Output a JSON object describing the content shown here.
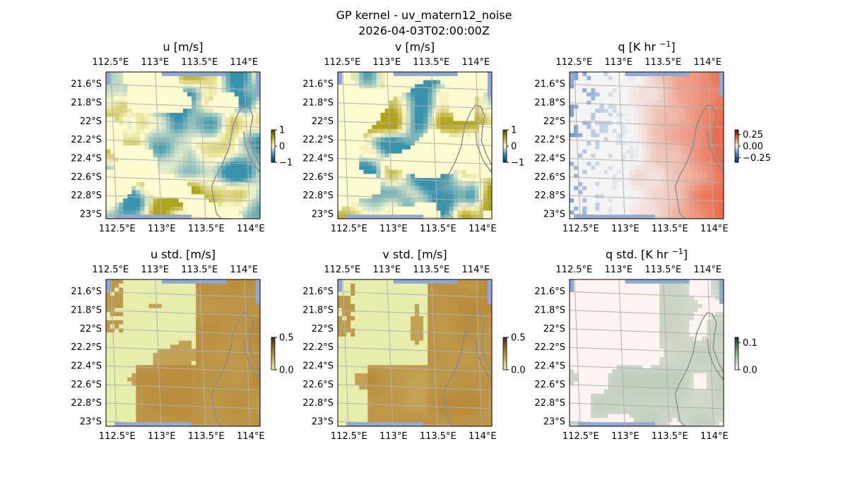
{
  "figure": {
    "title": "GP kernel - uv_matern12_noise",
    "subtitle": "2026-04-03T02:00:00Z"
  },
  "colors": {
    "ocean": "#8fa8d6",
    "grid": "#b0b0b0",
    "coast": "#8a8a8a",
    "u_low": "#fffbd0",
    "u_pos": "#b0a41e",
    "u_neg": "#3a93ad",
    "q_low": "#f4f4f4",
    "q_pos": "#ea6d4d",
    "std_low": "#e8f2b3",
    "std_high": "#b88a3a",
    "qstd_low": "#fff4f2",
    "qstd_high": "#8fb293"
  },
  "chart_data": [
    {
      "type": "heatmap",
      "title": "u [m/s]",
      "x_ticks": [
        "112.5°E",
        "113°E",
        "113.5°E",
        "114°E"
      ],
      "y_ticks": [
        "21.6°S",
        "21.8°S",
        "22°S",
        "22.2°S",
        "22.4°S",
        "22.6°S",
        "22.8°S",
        "23°S"
      ],
      "colorbar": {
        "ticks": [
          "1",
          "0",
          "−1"
        ],
        "range": [
          -1,
          1
        ]
      },
      "colormap": "diverging-teal-olive",
      "mask": "land-only (ocean shown blue)"
    },
    {
      "type": "heatmap",
      "title": "v [m/s]",
      "x_ticks": [
        "112.5°E",
        "113°E",
        "113.5°E",
        "114°E"
      ],
      "y_ticks": [
        "21.6°S",
        "21.8°S",
        "22°S",
        "22.2°S",
        "22.4°S",
        "22.6°S",
        "22.8°S",
        "23°S"
      ],
      "colorbar": {
        "ticks": [
          "1",
          "0",
          "−1"
        ],
        "range": [
          -1,
          1
        ]
      },
      "colormap": "diverging-teal-olive",
      "mask": "land-only (ocean shown blue)"
    },
    {
      "type": "heatmap",
      "title": "q [K hr ",
      "title_sup": "−1",
      "title_end": "]",
      "x_ticks": [
        "112.5°E",
        "113°E",
        "113.5°E",
        "114°E"
      ],
      "y_ticks": [
        "21.6°S",
        "21.8°S",
        "22°S",
        "22.2°S",
        "22.4°S",
        "22.6°S",
        "22.8°S",
        "23°S"
      ],
      "colorbar": {
        "ticks": [
          "0.25",
          "0.00",
          "−0.25"
        ],
        "range": [
          -0.35,
          0.35
        ]
      },
      "colormap": "diverging-blue-red",
      "mask": "land-only (ocean shown blue)"
    },
    {
      "type": "heatmap",
      "title": "u std. [m/s]",
      "x_ticks": [
        "112.5°E",
        "113°E",
        "113.5°E",
        "114°E"
      ],
      "y_ticks": [
        "21.6°S",
        "21.8°S",
        "22°S",
        "22.2°S",
        "22.4°S",
        "22.6°S",
        "22.8°S",
        "23°S"
      ],
      "colorbar": {
        "ticks": [
          "0.5",
          "0.0"
        ],
        "range": [
          0,
          0.5
        ]
      },
      "colormap": "sequential-green-brown",
      "mask": "land-only (ocean shown blue)"
    },
    {
      "type": "heatmap",
      "title": "v std. [m/s]",
      "x_ticks": [
        "112.5°E",
        "113°E",
        "113.5°E",
        "114°E"
      ],
      "y_ticks": [
        "21.6°S",
        "21.8°S",
        "22°S",
        "22.2°S",
        "22.4°S",
        "22.6°S",
        "22.8°S",
        "23°S"
      ],
      "colorbar": {
        "ticks": [
          "0.5",
          "0.0"
        ],
        "range": [
          0,
          0.5
        ]
      },
      "colormap": "sequential-green-brown",
      "mask": "land-only (ocean shown blue)"
    },
    {
      "type": "heatmap",
      "title": "q std. [K hr ",
      "title_sup": "−1",
      "title_end": "]",
      "x_ticks": [
        "112.5°E",
        "113°E",
        "113.5°E",
        "114°E"
      ],
      "y_ticks": [
        "21.6°S",
        "21.8°S",
        "22°S",
        "22.2°S",
        "22.4°S",
        "22.6°S",
        "22.8°S",
        "23°S"
      ],
      "colorbar": {
        "ticks": [
          "0.1",
          "0.0"
        ],
        "range": [
          0,
          0.12
        ]
      },
      "colormap": "sequential-pink-green",
      "mask": "land-only (ocean shown blue)"
    }
  ]
}
